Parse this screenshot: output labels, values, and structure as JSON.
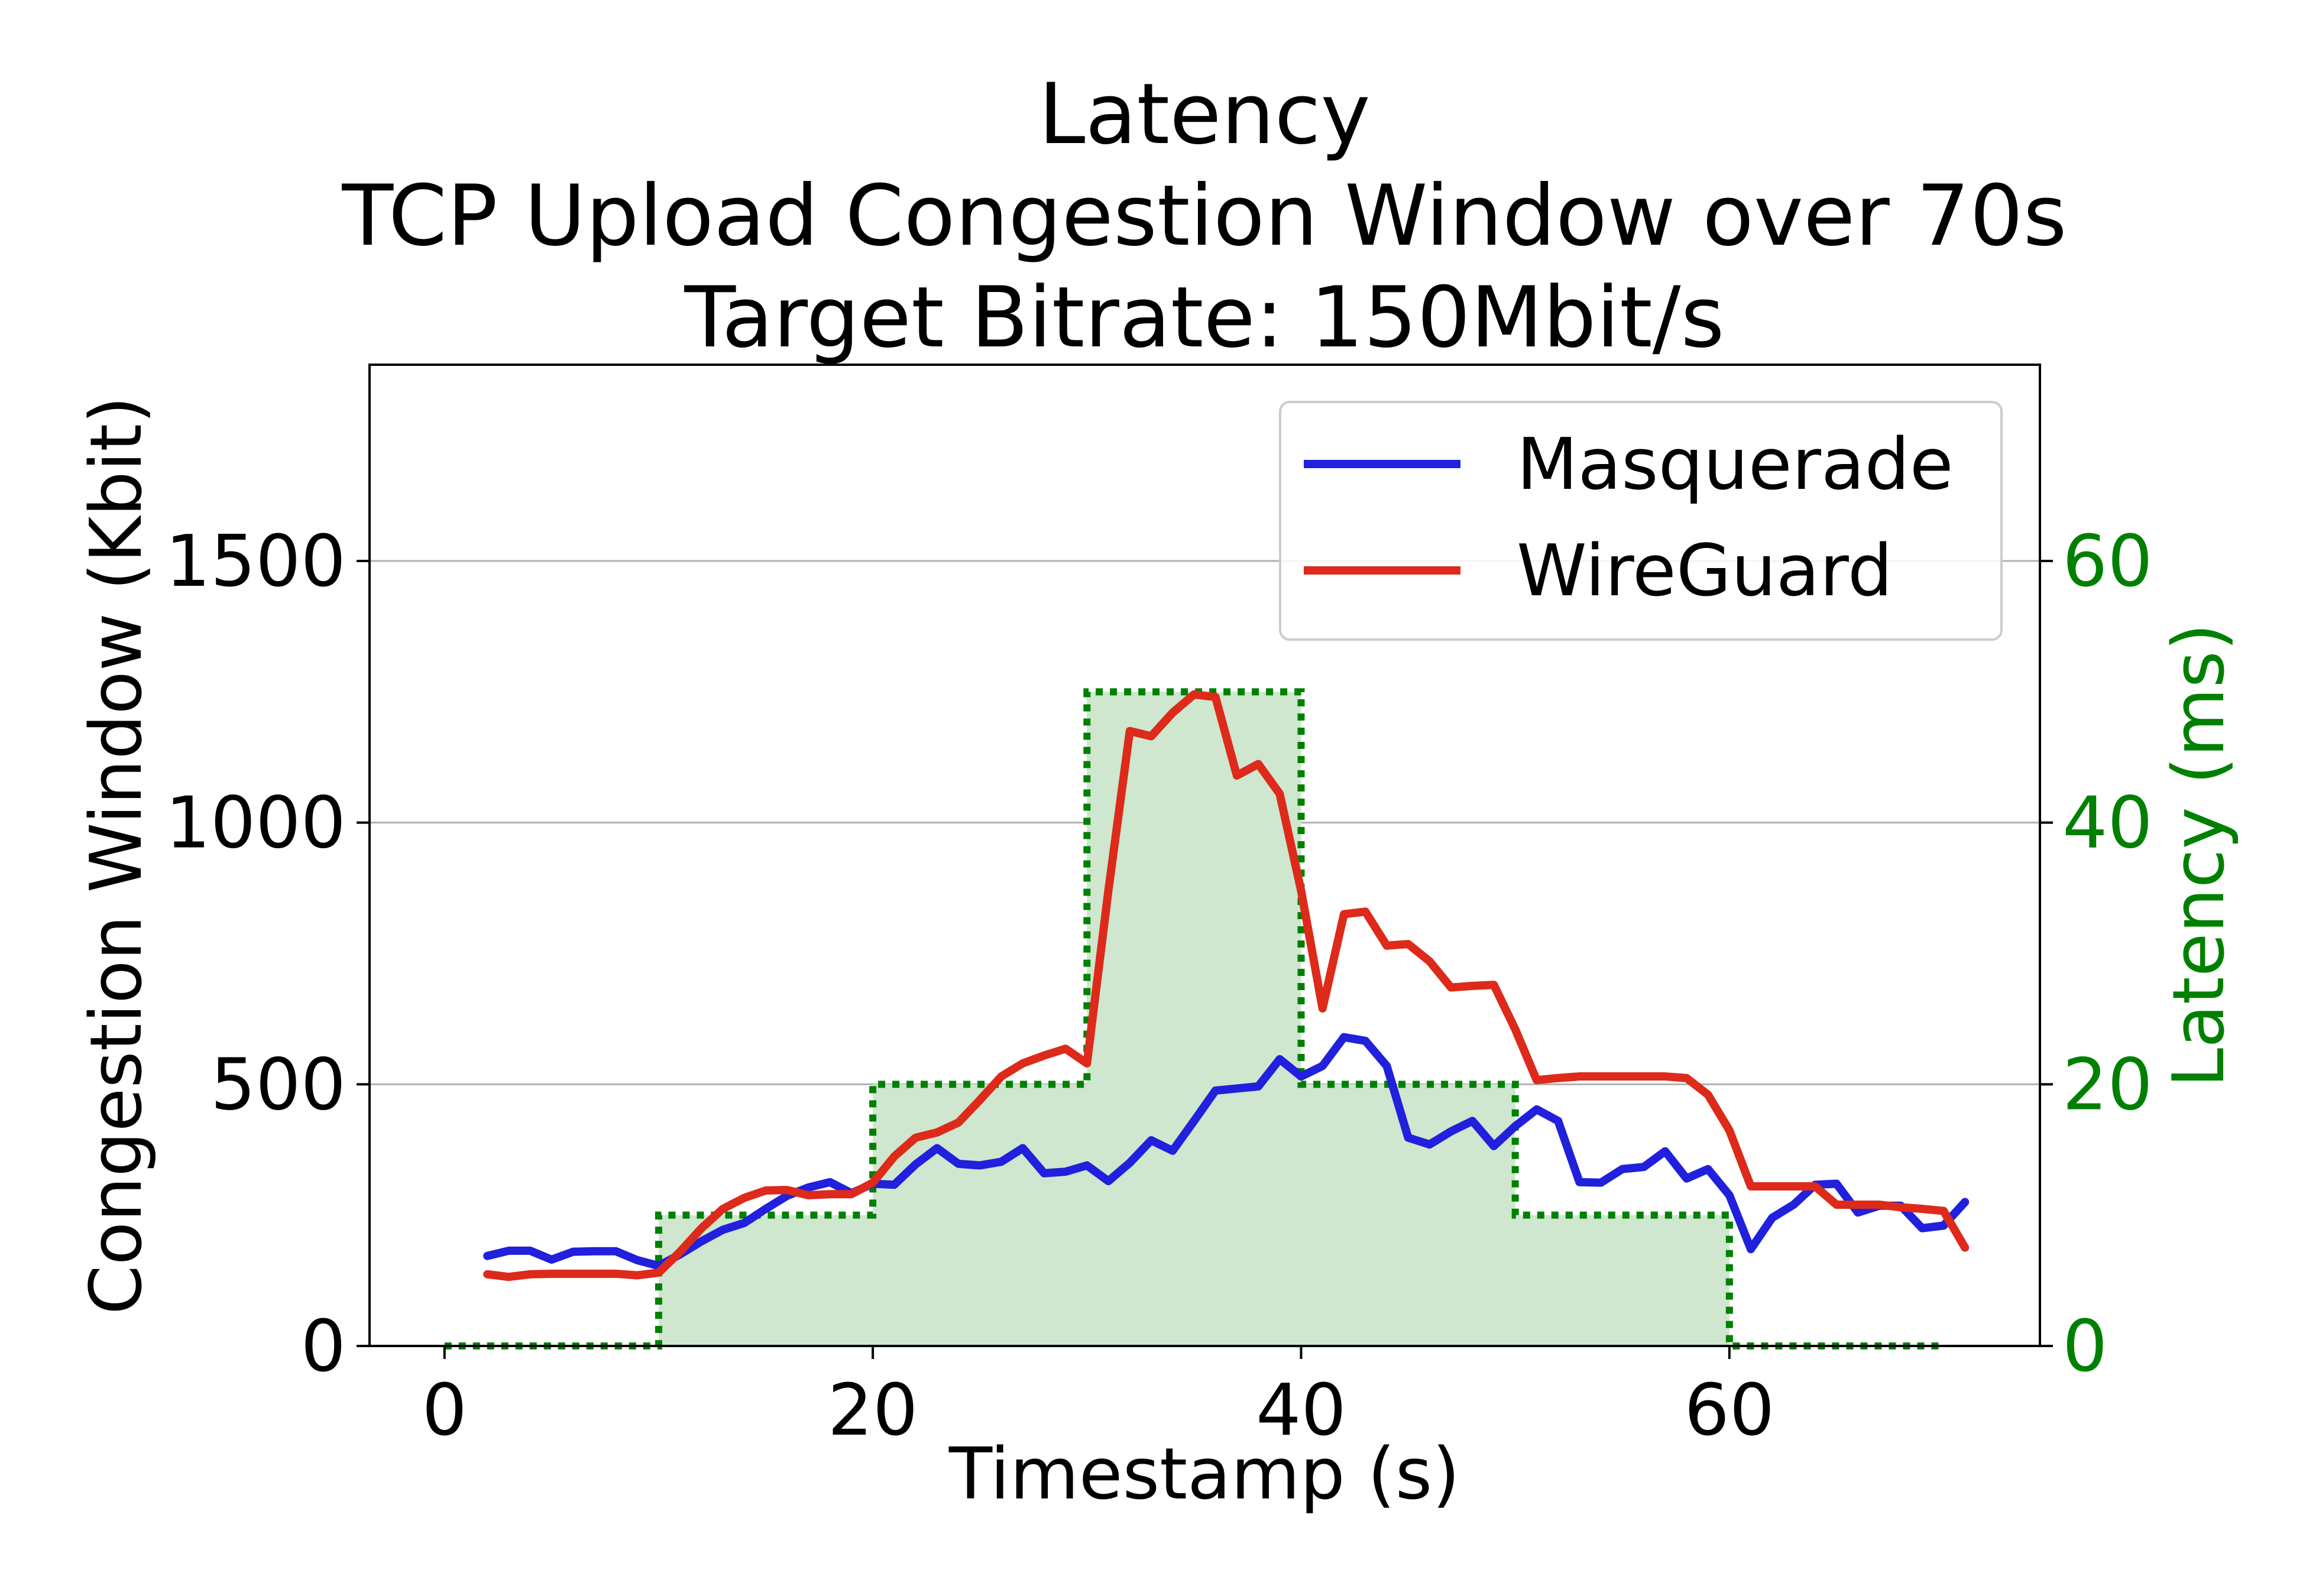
{
  "chart_data": {
    "type": "line",
    "title": [
      "Latency",
      "TCP Upload Congestion Window over 70s",
      "Target Bitrate: 150Mbit/s"
    ],
    "xlabel": "Timestamp (s)",
    "ylabel": "Congestion Window (Kbit)",
    "y2label": "Latency (ms)",
    "xlim": [
      -3.5,
      74.5
    ],
    "ylim": [
      0,
      1875
    ],
    "y2lim": [
      0,
      75
    ],
    "xticks": [
      0,
      20,
      40,
      60
    ],
    "yticks": [
      0,
      500,
      1000,
      1500
    ],
    "y2ticks": [
      0,
      20,
      40,
      60
    ],
    "grid": "horizontal",
    "legend_position": "top-right",
    "colors": {
      "masquerade": "#2020dd",
      "wireguard": "#dd2a1a",
      "latency": "#008000",
      "latency_fill": "#cfe6cf"
    },
    "latency_steps": {
      "name": "",
      "x": [
        0,
        10,
        10,
        20,
        20,
        30,
        30,
        40,
        40,
        50,
        50,
        60,
        60,
        70
      ],
      "values": [
        0,
        0,
        10,
        10,
        20,
        20,
        50,
        50,
        20,
        20,
        10,
        10,
        0,
        0
      ]
    },
    "series": [
      {
        "name": "Masquerade",
        "x": [
          2,
          3,
          4,
          5,
          6,
          7,
          8,
          9,
          10,
          11,
          12,
          13,
          14,
          15,
          16,
          17,
          18,
          19,
          20,
          21,
          22,
          23,
          24,
          25,
          26,
          27,
          28,
          29,
          30,
          31,
          32,
          33,
          34,
          35,
          36,
          37,
          38,
          39,
          40,
          41,
          42,
          43,
          44,
          45,
          46,
          47,
          48,
          49,
          50,
          51,
          52,
          53,
          54,
          55,
          56,
          57,
          58,
          59,
          60,
          61,
          62,
          63,
          64,
          65,
          66,
          67,
          68,
          69,
          70,
          71
        ],
        "values": [
          172,
          182,
          182,
          165,
          180,
          181,
          181,
          164,
          153,
          175,
          200,
          222,
          235,
          262,
          287,
          303,
          313,
          292,
          310,
          308,
          347,
          378,
          348,
          345,
          352,
          378,
          330,
          333,
          345,
          315,
          350,
          393,
          373,
          430,
          488,
          492,
          496,
          548,
          515,
          535,
          590,
          583,
          535,
          398,
          385,
          410,
          430,
          382,
          420,
          452,
          430,
          313,
          312,
          338,
          342,
          372,
          320,
          338,
          288,
          185,
          245,
          270,
          308,
          310,
          255,
          268,
          268,
          225,
          230,
          275
        ]
      },
      {
        "name": "WireGuard",
        "x": [
          2,
          3,
          4,
          5,
          6,
          7,
          8,
          9,
          10,
          11,
          12,
          13,
          14,
          15,
          16,
          17,
          18,
          19,
          20,
          21,
          22,
          23,
          24,
          25,
          26,
          27,
          28,
          29,
          30,
          31,
          32,
          33,
          34,
          35,
          36,
          37,
          38,
          39,
          40,
          41,
          42,
          43,
          44,
          45,
          46,
          47,
          48,
          49,
          50,
          51,
          52,
          53,
          54,
          55,
          56,
          57,
          58,
          59,
          60,
          61,
          62,
          63,
          64,
          65,
          66,
          67,
          68,
          69,
          70,
          71
        ],
        "values": [
          137,
          132,
          137,
          138,
          138,
          138,
          138,
          135,
          140,
          180,
          225,
          262,
          283,
          297,
          298,
          288,
          290,
          290,
          312,
          362,
          398,
          408,
          427,
          470,
          515,
          540,
          555,
          568,
          540,
          870,
          1175,
          1165,
          1210,
          1245,
          1240,
          1090,
          1112,
          1055,
          870,
          645,
          825,
          830,
          765,
          768,
          735,
          685,
          688,
          690,
          605,
          508,
          512,
          515,
          515,
          515,
          515,
          515,
          512,
          480,
          412,
          305,
          305,
          305,
          305,
          270,
          270,
          270,
          265,
          262,
          258,
          188
        ]
      }
    ]
  }
}
